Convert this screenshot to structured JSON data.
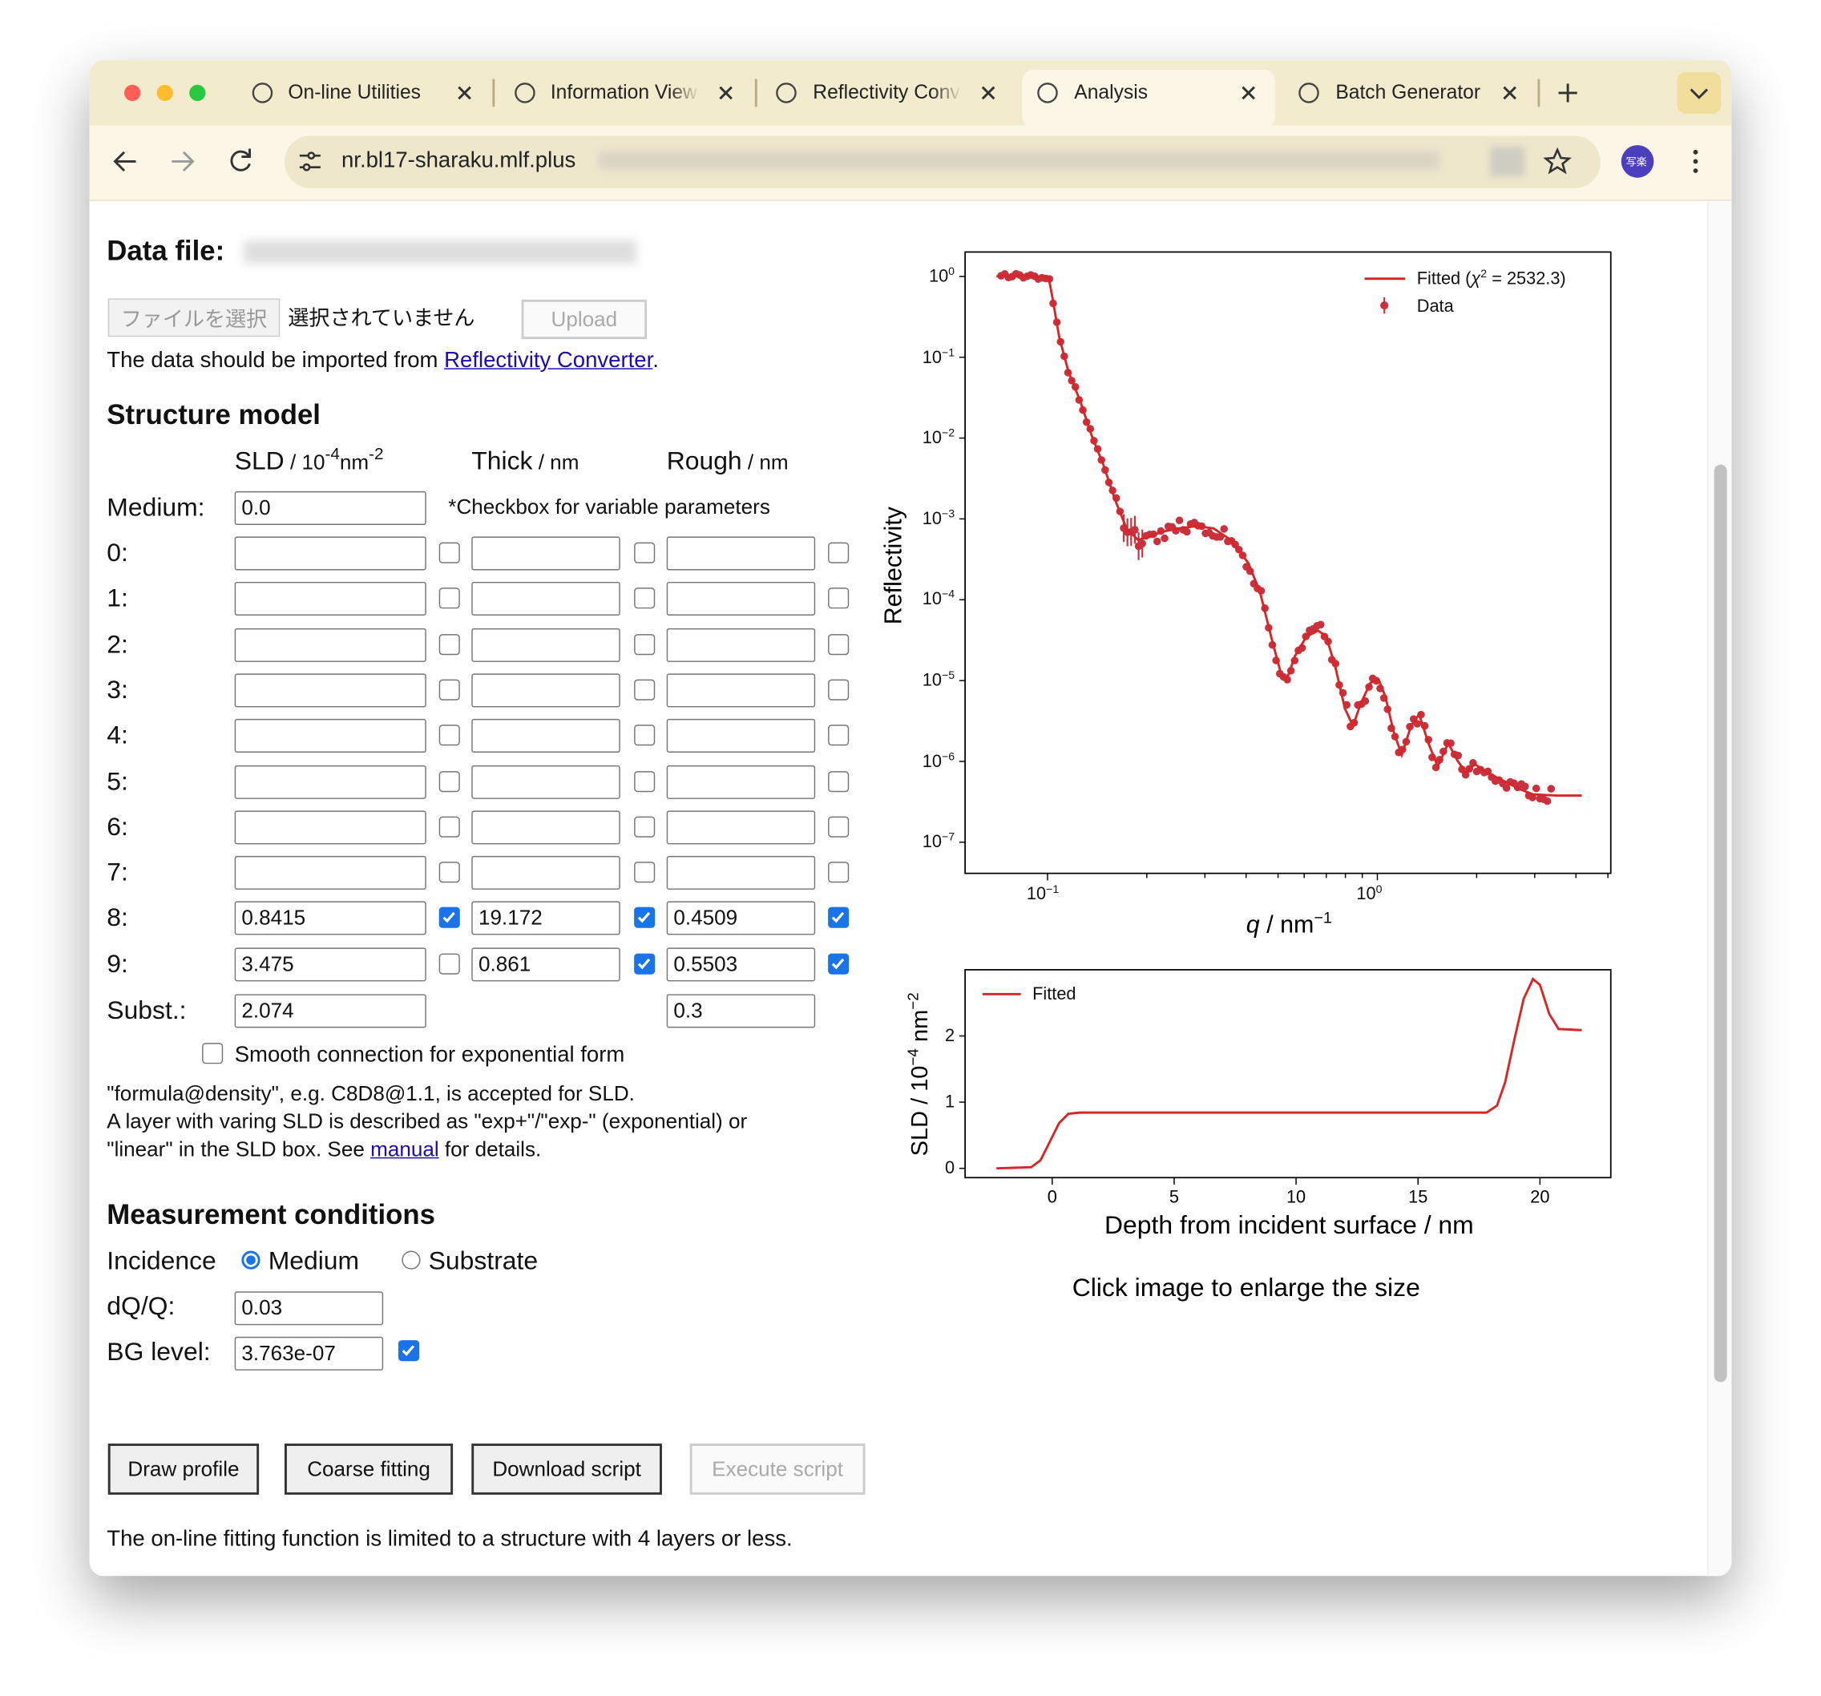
{
  "browser": {
    "tabs": [
      "On-line Utilities",
      "Information View",
      "Reflectivity Converter",
      "Analysis",
      "Batch Generator"
    ],
    "active_tab": 3,
    "url": "nr.bl17-sharaku.mlf.plus",
    "profile": "写楽"
  },
  "upload": {
    "label": "Data file:",
    "choose_button": "ファイルを選択",
    "no_file": "選択されていません",
    "upload_button": "Upload",
    "note": "The data should be imported from ",
    "link": "Reflectivity Converter",
    "note_end": "."
  },
  "structure": {
    "title": "Structure model",
    "headers": {
      "sld": {
        "name": "SLD",
        "unit": " / 10",
        "exp1": "-4",
        "unit2": "nm",
        "exp2": "-2"
      },
      "thick": {
        "name": "Thick",
        "unit": " / nm"
      },
      "rough": {
        "name": "Rough",
        "unit": " / nm"
      }
    },
    "medium": {
      "label": "Medium:",
      "sld": "0.0"
    },
    "note": "*Checkbox for variable parameters",
    "layers": [
      {
        "label": "0:",
        "variable": [
          false,
          false,
          false
        ]
      },
      {
        "label": "1:",
        "variable": [
          false,
          false,
          false
        ]
      },
      {
        "label": "2:",
        "variable": [
          false,
          false,
          false
        ]
      },
      {
        "label": "3:",
        "variable": [
          false,
          false,
          false
        ]
      },
      {
        "label": "4:",
        "variable": [
          false,
          false,
          false
        ]
      },
      {
        "label": "5:",
        "variable": [
          false,
          false,
          false
        ]
      },
      {
        "label": "6:",
        "variable": [
          false,
          false,
          false
        ]
      },
      {
        "label": "7:",
        "variable": [
          false,
          false,
          false
        ]
      },
      {
        "label": "8:",
        "sld": "0.8415",
        "thick": "19.172",
        "rough": "0.4509",
        "variable": [
          true,
          true,
          true
        ]
      },
      {
        "label": "9:",
        "sld": "3.475",
        "thick": "0.861",
        "rough": "0.5503",
        "variable": [
          false,
          true,
          true
        ]
      }
    ],
    "substrate": {
      "label": "Subst.:",
      "sld": "2.074",
      "rough": "0.3"
    },
    "smooth": {
      "label": "Smooth connection for exponential form",
      "checked": false
    },
    "help": {
      "lines": [
        "\"formula@density\", e.g. C8D8@1.1, is accepted for SLD.",
        "A layer with varing SLD is described as \"exp+\"/\"exp-\" (exponential) or"
      ],
      "line3_start": "\"linear\" in the SLD box. See ",
      "link": "manual",
      "line3_end": " for details."
    }
  },
  "measurement": {
    "title": "Measurement conditions",
    "incidence_label": "Incidence",
    "options": [
      "Medium",
      "Substrate"
    ],
    "selected": 0,
    "dq_label": "dQ/Q:",
    "dq": "0.03",
    "bg_label": "BG level:",
    "bg": "3.763e-07",
    "bg_variable": true
  },
  "buttons": [
    {
      "label": "Draw profile"
    },
    {
      "label": "Coarse fitting"
    },
    {
      "label": "Download script"
    },
    {
      "label": "Execute script",
      "disabled": true
    }
  ],
  "footer": "The on-line fitting function is limited to a structure with 4 layers or less.",
  "plots": {
    "reflectivity": {
      "ylabel": "Reflectivity",
      "xlabel": {
        "var": "q",
        "text": " / nm",
        "exp": "−1"
      },
      "yticks": [
        {
          "base": "10",
          "exp": "0"
        },
        {
          "base": "10",
          "exp": "−1"
        },
        {
          "base": "10",
          "exp": "−2"
        },
        {
          "base": "10",
          "exp": "−3"
        },
        {
          "base": "10",
          "exp": "−4"
        },
        {
          "base": "10",
          "exp": "−5"
        },
        {
          "base": "10",
          "exp": "−6"
        },
        {
          "base": "10",
          "exp": "−7"
        }
      ],
      "xticks": [
        {
          "base": "10",
          "exp": "−1"
        },
        {
          "base": "10",
          "exp": "0"
        }
      ],
      "legend": {
        "fitted": {
          "prefix": "Fitted (",
          "var": "χ",
          "exp": "2",
          "suffix": " = 2532.3)"
        },
        "data": "Data"
      }
    },
    "sld": {
      "ylabel": {
        "a": "SLD / 10",
        "exp1": "−4",
        "b": " nm",
        "exp2": "−2"
      },
      "xlabel": "Depth from incident surface / nm",
      "yticks": [
        "0",
        "1",
        "2"
      ],
      "xticks": [
        "0",
        "5",
        "10",
        "15",
        "20"
      ],
      "legend": "Fitted"
    },
    "caption": "Click image to enlarge the size"
  }
}
